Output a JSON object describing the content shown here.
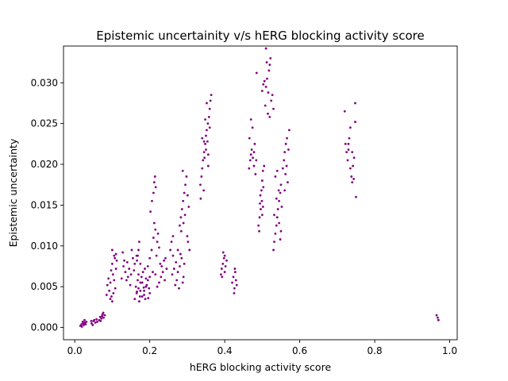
{
  "chart_data": {
    "type": "scatter",
    "title": "Epistemic uncertainity v/s hERG blocking activity score",
    "xlabel": "hERG blocking activity score",
    "ylabel": "Epistemic uncertainty",
    "xlim": [
      -0.03,
      1.02
    ],
    "ylim": [
      -0.0015,
      0.0345
    ],
    "xticks": [
      0.0,
      0.2,
      0.4,
      0.6,
      0.8,
      1.0
    ],
    "xtick_labels": [
      "0.0",
      "0.2",
      "0.4",
      "0.6",
      "0.8",
      "1.0"
    ],
    "yticks": [
      0.0,
      0.005,
      0.01,
      0.015,
      0.02,
      0.025,
      0.03
    ],
    "ytick_labels": [
      "0.000",
      "0.005",
      "0.010",
      "0.015",
      "0.020",
      "0.025",
      "0.030"
    ],
    "grid": false,
    "legend": "none",
    "marker_color": "#800080",
    "points": [
      [
        0.015,
        0.0002
      ],
      [
        0.018,
        0.0004
      ],
      [
        0.021,
        0.0007
      ],
      [
        0.024,
        0.0003
      ],
      [
        0.027,
        0.0006
      ],
      [
        0.019,
        0.0001
      ],
      [
        0.023,
        0.0005
      ],
      [
        0.026,
        0.0009
      ],
      [
        0.029,
        0.0004
      ],
      [
        0.031,
        0.0007
      ],
      [
        0.045,
        0.0005
      ],
      [
        0.05,
        0.0008
      ],
      [
        0.055,
        0.0006
      ],
      [
        0.058,
        0.001
      ],
      [
        0.048,
        0.0003
      ],
      [
        0.052,
        0.0009
      ],
      [
        0.06,
        0.0007
      ],
      [
        0.044,
        0.0008
      ],
      [
        0.065,
        0.0009
      ],
      [
        0.068,
        0.0013
      ],
      [
        0.071,
        0.0011
      ],
      [
        0.074,
        0.0016
      ],
      [
        0.077,
        0.0012
      ],
      [
        0.069,
        0.0008
      ],
      [
        0.073,
        0.0014
      ],
      [
        0.076,
        0.0018
      ],
      [
        0.08,
        0.0015
      ],
      [
        0.085,
        0.004
      ],
      [
        0.087,
        0.0052
      ],
      [
        0.09,
        0.006
      ],
      [
        0.092,
        0.0045
      ],
      [
        0.095,
        0.0055
      ],
      [
        0.097,
        0.007
      ],
      [
        0.1,
        0.0078
      ],
      [
        0.102,
        0.0065
      ],
      [
        0.105,
        0.0058
      ],
      [
        0.107,
        0.0085
      ],
      [
        0.1,
        0.0095
      ],
      [
        0.11,
        0.009
      ],
      [
        0.098,
        0.0038
      ],
      [
        0.103,
        0.0042
      ],
      [
        0.108,
        0.0048
      ],
      [
        0.095,
        0.0035
      ],
      [
        0.1,
        0.0032
      ],
      [
        0.11,
        0.0072
      ],
      [
        0.105,
        0.0088
      ],
      [
        0.112,
        0.0082
      ],
      [
        0.125,
        0.006
      ],
      [
        0.13,
        0.0075
      ],
      [
        0.135,
        0.0068
      ],
      [
        0.14,
        0.008
      ],
      [
        0.145,
        0.0072
      ],
      [
        0.15,
        0.0065
      ],
      [
        0.155,
        0.0085
      ],
      [
        0.16,
        0.0078
      ],
      [
        0.128,
        0.0092
      ],
      [
        0.138,
        0.0058
      ],
      [
        0.148,
        0.0052
      ],
      [
        0.152,
        0.0095
      ],
      [
        0.158,
        0.007
      ],
      [
        0.165,
        0.0088
      ],
      [
        0.142,
        0.0062
      ],
      [
        0.132,
        0.0082
      ],
      [
        0.16,
        0.0035
      ],
      [
        0.165,
        0.0042
      ],
      [
        0.17,
        0.0048
      ],
      [
        0.175,
        0.0055
      ],
      [
        0.18,
        0.0038
      ],
      [
        0.185,
        0.0045
      ],
      [
        0.19,
        0.005
      ],
      [
        0.195,
        0.0058
      ],
      [
        0.2,
        0.0042
      ],
      [
        0.172,
        0.0032
      ],
      [
        0.178,
        0.0062
      ],
      [
        0.182,
        0.0068
      ],
      [
        0.188,
        0.0035
      ],
      [
        0.192,
        0.0052
      ],
      [
        0.168,
        0.0058
      ],
      [
        0.175,
        0.0045
      ],
      [
        0.185,
        0.004
      ],
      [
        0.19,
        0.006
      ],
      [
        0.198,
        0.0048
      ],
      [
        0.163,
        0.005
      ],
      [
        0.17,
        0.0065
      ],
      [
        0.18,
        0.0055
      ],
      [
        0.187,
        0.0072
      ],
      [
        0.174,
        0.0038
      ],
      [
        0.196,
        0.0036
      ],
      [
        0.166,
        0.0044
      ],
      [
        0.184,
        0.0049
      ],
      [
        0.17,
        0.0095
      ],
      [
        0.172,
        0.0105
      ],
      [
        0.168,
        0.0088
      ],
      [
        0.175,
        0.0078
      ],
      [
        0.166,
        0.0082
      ],
      [
        0.195,
        0.0075
      ],
      [
        0.2,
        0.0085
      ],
      [
        0.205,
        0.0095
      ],
      [
        0.21,
        0.011
      ],
      [
        0.215,
        0.012
      ],
      [
        0.22,
        0.0105
      ],
      [
        0.225,
        0.0098
      ],
      [
        0.212,
        0.0128
      ],
      [
        0.218,
        0.0088
      ],
      [
        0.208,
        0.0068
      ],
      [
        0.2,
        0.0062
      ],
      [
        0.222,
        0.0115
      ],
      [
        0.202,
        0.0142
      ],
      [
        0.206,
        0.0155
      ],
      [
        0.215,
        0.0065
      ],
      [
        0.21,
        0.0165
      ],
      [
        0.212,
        0.0178
      ],
      [
        0.214,
        0.0185
      ],
      [
        0.216,
        0.0172
      ],
      [
        0.22,
        0.005
      ],
      [
        0.225,
        0.0055
      ],
      [
        0.23,
        0.0062
      ],
      [
        0.235,
        0.0068
      ],
      [
        0.24,
        0.0058
      ],
      [
        0.245,
        0.0072
      ],
      [
        0.232,
        0.0075
      ],
      [
        0.238,
        0.0082
      ],
      [
        0.228,
        0.0078
      ],
      [
        0.242,
        0.0085
      ],
      [
        0.26,
        0.0065
      ],
      [
        0.265,
        0.0072
      ],
      [
        0.27,
        0.008
      ],
      [
        0.275,
        0.0068
      ],
      [
        0.28,
        0.0075
      ],
      [
        0.285,
        0.0085
      ],
      [
        0.29,
        0.0062
      ],
      [
        0.272,
        0.0058
      ],
      [
        0.282,
        0.009
      ],
      [
        0.268,
        0.0052
      ],
      [
        0.278,
        0.0048
      ],
      [
        0.288,
        0.0055
      ],
      [
        0.292,
        0.0078
      ],
      [
        0.275,
        0.0095
      ],
      [
        0.262,
        0.0088
      ],
      [
        0.255,
        0.0095
      ],
      [
        0.258,
        0.0105
      ],
      [
        0.262,
        0.0112
      ],
      [
        0.28,
        0.0125
      ],
      [
        0.283,
        0.0135
      ],
      [
        0.286,
        0.0145
      ],
      [
        0.289,
        0.0155
      ],
      [
        0.292,
        0.0165
      ],
      [
        0.295,
        0.0175
      ],
      [
        0.298,
        0.0185
      ],
      [
        0.288,
        0.0192
      ],
      [
        0.284,
        0.0118
      ],
      [
        0.29,
        0.0128
      ],
      [
        0.294,
        0.0138
      ],
      [
        0.3,
        0.0112
      ],
      [
        0.302,
        0.0105
      ],
      [
        0.306,
        0.0095
      ],
      [
        0.304,
        0.0148
      ],
      [
        0.301,
        0.0162
      ],
      [
        0.335,
        0.0175
      ],
      [
        0.338,
        0.0185
      ],
      [
        0.34,
        0.0195
      ],
      [
        0.342,
        0.0205
      ],
      [
        0.345,
        0.0215
      ],
      [
        0.348,
        0.0225
      ],
      [
        0.35,
        0.0235
      ],
      [
        0.352,
        0.0242
      ],
      [
        0.355,
        0.025
      ],
      [
        0.358,
        0.0258
      ],
      [
        0.36,
        0.0245
      ],
      [
        0.344,
        0.0168
      ],
      [
        0.346,
        0.0208
      ],
      [
        0.354,
        0.0228
      ],
      [
        0.356,
        0.0212
      ],
      [
        0.34,
        0.0232
      ],
      [
        0.348,
        0.0255
      ],
      [
        0.36,
        0.0268
      ],
      [
        0.352,
        0.0275
      ],
      [
        0.364,
        0.0285
      ],
      [
        0.362,
        0.0278
      ],
      [
        0.345,
        0.0228
      ],
      [
        0.35,
        0.0218
      ],
      [
        0.336,
        0.0158
      ],
      [
        0.356,
        0.0198
      ],
      [
        0.39,
        0.0065
      ],
      [
        0.392,
        0.0072
      ],
      [
        0.395,
        0.0078
      ],
      [
        0.398,
        0.0085
      ],
      [
        0.4,
        0.0068
      ],
      [
        0.402,
        0.0075
      ],
      [
        0.396,
        0.0092
      ],
      [
        0.393,
        0.0062
      ],
      [
        0.405,
        0.0082
      ],
      [
        0.4,
        0.0088
      ],
      [
        0.42,
        0.0055
      ],
      [
        0.423,
        0.0062
      ],
      [
        0.426,
        0.0048
      ],
      [
        0.428,
        0.0068
      ],
      [
        0.43,
        0.0058
      ],
      [
        0.425,
        0.0042
      ],
      [
        0.427,
        0.0072
      ],
      [
        0.432,
        0.0052
      ],
      [
        0.465,
        0.0195
      ],
      [
        0.468,
        0.0205
      ],
      [
        0.47,
        0.0212
      ],
      [
        0.472,
        0.0218
      ],
      [
        0.475,
        0.0208
      ],
      [
        0.478,
        0.0198
      ],
      [
        0.48,
        0.0225
      ],
      [
        0.482,
        0.0188
      ],
      [
        0.466,
        0.0232
      ],
      [
        0.474,
        0.0245
      ],
      [
        0.47,
        0.0255
      ],
      [
        0.478,
        0.0215
      ],
      [
        0.484,
        0.0205
      ],
      [
        0.485,
        0.0312
      ],
      [
        0.49,
        0.0125
      ],
      [
        0.493,
        0.0135
      ],
      [
        0.496,
        0.0145
      ],
      [
        0.499,
        0.0155
      ],
      [
        0.502,
        0.0148
      ],
      [
        0.495,
        0.0162
      ],
      [
        0.498,
        0.0168
      ],
      [
        0.492,
        0.0118
      ],
      [
        0.5,
        0.0138
      ],
      [
        0.503,
        0.0172
      ],
      [
        0.494,
        0.0152
      ],
      [
        0.5,
        0.018
      ],
      [
        0.502,
        0.0192
      ],
      [
        0.505,
        0.0198
      ],
      [
        0.5,
        0.029
      ],
      [
        0.503,
        0.0298
      ],
      [
        0.506,
        0.0302
      ],
      [
        0.51,
        0.0295
      ],
      [
        0.513,
        0.0305
      ],
      [
        0.516,
        0.0288
      ],
      [
        0.518,
        0.0315
      ],
      [
        0.52,
        0.0322
      ],
      [
        0.522,
        0.033
      ],
      [
        0.524,
        0.0278
      ],
      [
        0.527,
        0.0285
      ],
      [
        0.53,
        0.0268
      ],
      [
        0.512,
        0.0325
      ],
      [
        0.508,
        0.0272
      ],
      [
        0.515,
        0.0262
      ],
      [
        0.52,
        0.0258
      ],
      [
        0.51,
        0.0342
      ],
      [
        0.53,
        0.0095
      ],
      [
        0.532,
        0.0105
      ],
      [
        0.535,
        0.0115
      ],
      [
        0.538,
        0.0125
      ],
      [
        0.54,
        0.0135
      ],
      [
        0.542,
        0.0145
      ],
      [
        0.545,
        0.0155
      ],
      [
        0.548,
        0.0165
      ],
      [
        0.55,
        0.0175
      ],
      [
        0.535,
        0.0185
      ],
      [
        0.54,
        0.0192
      ],
      [
        0.545,
        0.0128
      ],
      [
        0.548,
        0.0108
      ],
      [
        0.552,
        0.0148
      ],
      [
        0.532,
        0.0138
      ],
      [
        0.538,
        0.0158
      ],
      [
        0.544,
        0.0168
      ],
      [
        0.55,
        0.0118
      ],
      [
        0.555,
        0.0195
      ],
      [
        0.558,
        0.0205
      ],
      [
        0.56,
        0.0215
      ],
      [
        0.563,
        0.0225
      ],
      [
        0.566,
        0.0232
      ],
      [
        0.57,
        0.0218
      ],
      [
        0.565,
        0.0198
      ],
      [
        0.562,
        0.0188
      ],
      [
        0.568,
        0.0178
      ],
      [
        0.572,
        0.0242
      ],
      [
        0.56,
        0.0168
      ],
      [
        0.72,
        0.0265
      ],
      [
        0.722,
        0.0225
      ],
      [
        0.725,
        0.0215
      ],
      [
        0.728,
        0.0205
      ],
      [
        0.73,
        0.0218
      ],
      [
        0.732,
        0.0232
      ],
      [
        0.735,
        0.0195
      ],
      [
        0.738,
        0.0185
      ],
      [
        0.74,
        0.0178
      ],
      [
        0.742,
        0.0198
      ],
      [
        0.745,
        0.0208
      ],
      [
        0.748,
        0.0252
      ],
      [
        0.748,
        0.0275
      ],
      [
        0.735,
        0.0245
      ],
      [
        0.744,
        0.0182
      ],
      [
        0.75,
        0.016
      ],
      [
        0.73,
        0.0225
      ],
      [
        0.74,
        0.0215
      ],
      [
        0.965,
        0.0015
      ],
      [
        0.968,
        0.0012
      ],
      [
        0.97,
        0.0009
      ]
    ]
  }
}
